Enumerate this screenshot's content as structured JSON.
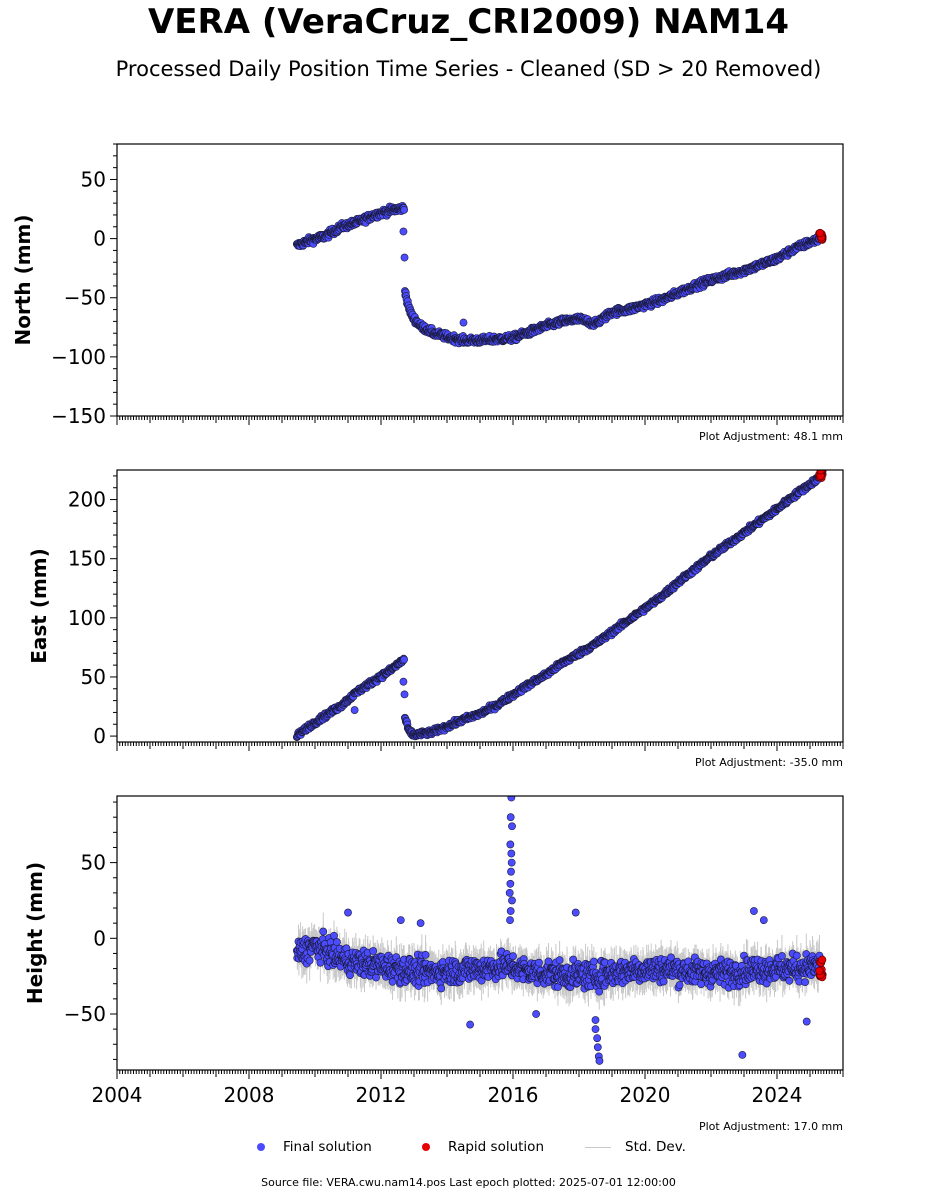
{
  "title": "VERA (VeraCruz_CRI2009) NAM14",
  "subtitle": "Processed Daily Position Time Series - Cleaned (SD > 20 Removed)",
  "colors": {
    "final": "#4b4bff",
    "rapid": "#e60000",
    "stddev": "#c8c8c8",
    "edge": "#1a1a3a"
  },
  "legend": {
    "final": "Final solution",
    "rapid": "Rapid solution",
    "stddev": "Std. Dev."
  },
  "footer": "Source file: VERA.cwu.nam14.pos  Last epoch plotted: 2025-07-01 12:00:00",
  "chart_data": [
    {
      "type": "scatter",
      "ylabel": "North (mm)",
      "adjustment": "Plot Adjustment: 48.1 mm",
      "xlim": [
        2004,
        2026
      ],
      "ylim": [
        -150,
        80
      ],
      "yticks": [
        50,
        0,
        -50,
        -100,
        -150
      ],
      "ytick_labels": [
        "50",
        "0",
        "−50",
        "−100",
        "−150"
      ],
      "show_xtick_labels": false,
      "trend": [
        [
          2009.45,
          -6
        ],
        [
          2009.8,
          -2
        ],
        [
          2010.3,
          2
        ],
        [
          2010.8,
          10
        ],
        [
          2011.3,
          14
        ],
        [
          2011.8,
          20
        ],
        [
          2012.3,
          24
        ],
        [
          2012.7,
          26
        ],
        [
          2012.72,
          -42
        ],
        [
          2012.8,
          -55
        ],
        [
          2012.95,
          -66
        ],
        [
          2013.2,
          -74
        ],
        [
          2013.6,
          -80
        ],
        [
          2014.0,
          -83
        ],
        [
          2014.5,
          -86
        ],
        [
          2015.0,
          -86
        ],
        [
          2015.5,
          -85
        ],
        [
          2016.0,
          -84
        ],
        [
          2016.5,
          -79
        ],
        [
          2017.0,
          -74
        ],
        [
          2017.5,
          -70
        ],
        [
          2018.0,
          -68
        ],
        [
          2018.5,
          -72
        ],
        [
          2019.0,
          -62
        ],
        [
          2019.5,
          -60
        ],
        [
          2020.0,
          -56
        ],
        [
          2020.5,
          -52
        ],
        [
          2021.0,
          -46
        ],
        [
          2021.5,
          -40
        ],
        [
          2022.0,
          -35
        ],
        [
          2022.5,
          -31
        ],
        [
          2023.0,
          -27
        ],
        [
          2023.5,
          -22
        ],
        [
          2024.0,
          -17
        ],
        [
          2024.5,
          -9
        ],
        [
          2025.0,
          -3
        ],
        [
          2025.3,
          0
        ]
      ],
      "noise": 4,
      "outliers": [
        [
          2012.68,
          6
        ],
        [
          2014.5,
          -71
        ]
      ],
      "rapid": {
        "x0": 2025.28,
        "x1": 2025.38,
        "y0": -1,
        "y1": 5
      }
    },
    {
      "type": "scatter",
      "ylabel": "East (mm)",
      "adjustment": "Plot Adjustment: -35.0 mm",
      "xlim": [
        2004,
        2026
      ],
      "ylim": [
        -5,
        225
      ],
      "yticks": [
        200,
        150,
        100,
        50,
        0
      ],
      "ytick_labels": [
        "200",
        "150",
        "100",
        "50",
        "0"
      ],
      "show_xtick_labels": false,
      "trend": [
        [
          2009.45,
          0
        ],
        [
          2009.8,
          8
        ],
        [
          2010.3,
          17
        ],
        [
          2010.8,
          26
        ],
        [
          2011.3,
          38
        ],
        [
          2011.8,
          47
        ],
        [
          2012.3,
          56
        ],
        [
          2012.7,
          65
        ],
        [
          2012.72,
          16
        ],
        [
          2012.85,
          4
        ],
        [
          2013.0,
          1
        ],
        [
          2013.5,
          3
        ],
        [
          2014.0,
          8
        ],
        [
          2014.5,
          14
        ],
        [
          2015.0,
          19
        ],
        [
          2015.5,
          26
        ],
        [
          2016.0,
          35
        ],
        [
          2016.5,
          44
        ],
        [
          2017.0,
          52
        ],
        [
          2017.5,
          62
        ],
        [
          2018.0,
          70
        ],
        [
          2018.5,
          78
        ],
        [
          2019.0,
          88
        ],
        [
          2019.5,
          98
        ],
        [
          2020.0,
          108
        ],
        [
          2020.5,
          118
        ],
        [
          2021.0,
          130
        ],
        [
          2021.5,
          141
        ],
        [
          2022.0,
          152
        ],
        [
          2022.5,
          162
        ],
        [
          2023.0,
          172
        ],
        [
          2023.5,
          182
        ],
        [
          2024.0,
          192
        ],
        [
          2024.5,
          203
        ],
        [
          2025.0,
          213
        ],
        [
          2025.3,
          219
        ]
      ],
      "noise": 3,
      "outliers": [
        [
          2011.2,
          22
        ],
        [
          2012.68,
          46
        ]
      ],
      "rapid": {
        "x0": 2025.28,
        "x1": 2025.38,
        "y0": 218,
        "y1": 225
      }
    },
    {
      "type": "scatter",
      "ylabel": "Height (mm)",
      "adjustment": "Plot Adjustment: 17.0 mm",
      "xlim": [
        2004,
        2026
      ],
      "ylim": [
        -87,
        94
      ],
      "yticks": [
        50,
        0,
        -50
      ],
      "ytick_labels": [
        "50",
        "0",
        "−50"
      ],
      "show_xtick_labels": true,
      "xticks": [
        2004,
        2008,
        2012,
        2016,
        2020,
        2024
      ],
      "xtick_labels": [
        "2004",
        "2008",
        "2012",
        "2016",
        "2020",
        "2024"
      ],
      "trend": [
        [
          2009.45,
          -10
        ],
        [
          2010.0,
          -5
        ],
        [
          2011.0,
          -15
        ],
        [
          2012.0,
          -18
        ],
        [
          2013.0,
          -22
        ],
        [
          2014.0,
          -22
        ],
        [
          2015.0,
          -20
        ],
        [
          2015.8,
          -18
        ],
        [
          2016.5,
          -22
        ],
        [
          2017.5,
          -24
        ],
        [
          2018.5,
          -25
        ],
        [
          2019.5,
          -21
        ],
        [
          2020.5,
          -20
        ],
        [
          2021.5,
          -22
        ],
        [
          2022.5,
          -23
        ],
        [
          2023.5,
          -20
        ],
        [
          2024.5,
          -20
        ],
        [
          2025.3,
          -18
        ]
      ],
      "noise": 12,
      "outliers": [
        [
          2015.95,
          93
        ],
        [
          2015.93,
          80
        ],
        [
          2015.97,
          74
        ],
        [
          2015.92,
          62
        ],
        [
          2015.95,
          56
        ],
        [
          2015.96,
          50
        ],
        [
          2015.94,
          44
        ],
        [
          2015.92,
          36
        ],
        [
          2015.9,
          30
        ],
        [
          2015.97,
          25
        ],
        [
          2015.93,
          18
        ],
        [
          2015.91,
          12
        ],
        [
          2018.5,
          -60
        ],
        [
          2018.55,
          -66
        ],
        [
          2018.57,
          -72
        ],
        [
          2018.6,
          -78
        ],
        [
          2018.62,
          -81
        ],
        [
          2018.5,
          -54
        ],
        [
          2022.95,
          -77
        ],
        [
          2011.0,
          17
        ],
        [
          2017.9,
          17
        ],
        [
          2023.3,
          18
        ],
        [
          2023.6,
          12
        ],
        [
          2024.9,
          -55
        ],
        [
          2016.7,
          -50
        ],
        [
          2014.7,
          -57
        ],
        [
          2013.2,
          10
        ],
        [
          2012.6,
          12
        ]
      ],
      "rapid": {
        "x0": 2025.28,
        "x1": 2025.38,
        "y0": -27,
        "y1": -12
      }
    }
  ]
}
